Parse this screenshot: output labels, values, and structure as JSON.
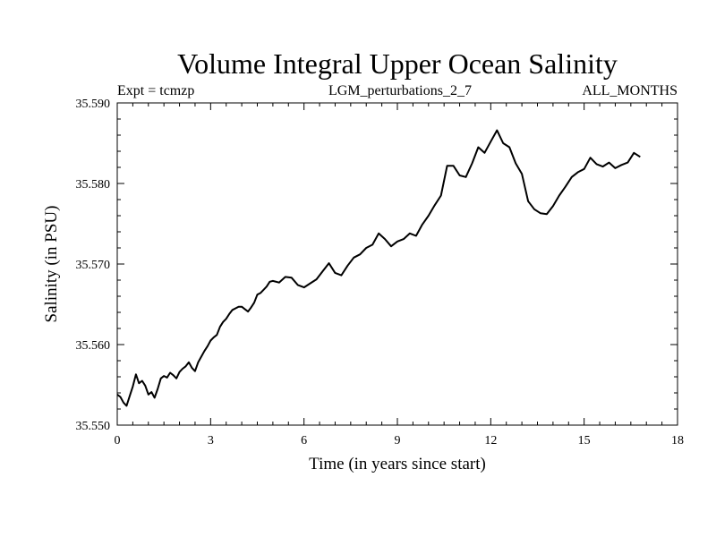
{
  "chart_data": {
    "type": "line",
    "title": "Volume Integral Upper Ocean Salinity",
    "subtitle_left": "Expt = tcmzp",
    "subtitle_center": "LGM_perturbations_2_7",
    "subtitle_right": "ALL_MONTHS",
    "xlabel": "Time (in years since start)",
    "ylabel": "Salinity (in PSU)",
    "xlim": [
      0,
      18
    ],
    "ylim": [
      35.55,
      35.59
    ],
    "xticks": [
      0,
      3,
      6,
      9,
      12,
      15,
      18
    ],
    "xtick_labels": [
      "0",
      "3",
      "6",
      "9",
      "12",
      "15",
      "18"
    ],
    "yticks": [
      35.55,
      35.56,
      35.57,
      35.58,
      35.59
    ],
    "ytick_labels": [
      "35.550",
      "35.560",
      "35.570",
      "35.580",
      "35.590"
    ],
    "grid": false,
    "series": [
      {
        "name": "salinity",
        "x": [
          0.0,
          0.1,
          0.2,
          0.3,
          0.4,
          0.5,
          0.6,
          0.7,
          0.8,
          0.9,
          1.0,
          1.1,
          1.2,
          1.3,
          1.4,
          1.5,
          1.6,
          1.7,
          1.8,
          1.9,
          2.0,
          2.1,
          2.2,
          2.3,
          2.4,
          2.5,
          2.6,
          2.7,
          2.8,
          2.9,
          3.0,
          3.1,
          3.2,
          3.3,
          3.4,
          3.5,
          3.6,
          3.7,
          3.8,
          3.9,
          4.0,
          4.1,
          4.2,
          4.3,
          4.4,
          4.5,
          4.6,
          4.7,
          4.8,
          4.9,
          5.0,
          5.2,
          5.4,
          5.6,
          5.8,
          6.0,
          6.2,
          6.4,
          6.6,
          6.8,
          7.0,
          7.2,
          7.4,
          7.6,
          7.8,
          8.0,
          8.2,
          8.4,
          8.6,
          8.8,
          9.0,
          9.2,
          9.4,
          9.6,
          9.8,
          10.0,
          10.2,
          10.4,
          10.6,
          10.8,
          11.0,
          11.2,
          11.4,
          11.6,
          11.8,
          12.0,
          12.2,
          12.4,
          12.6,
          12.8,
          13.0,
          13.2,
          13.4,
          13.6,
          13.8,
          14.0,
          14.2,
          14.4,
          14.6,
          14.8,
          15.0,
          15.2,
          15.4,
          15.6,
          15.8,
          16.0,
          16.2,
          16.4,
          16.6,
          16.8
        ],
        "values": [
          35.5538,
          35.5535,
          35.5528,
          35.5524,
          35.5536,
          35.5548,
          35.5563,
          35.5552,
          35.5555,
          35.5549,
          35.5538,
          35.5541,
          35.5534,
          35.5545,
          35.5558,
          35.5561,
          35.5559,
          35.5565,
          35.5562,
          35.5558,
          35.5566,
          35.557,
          35.5573,
          35.5578,
          35.5571,
          35.5567,
          35.5578,
          35.5585,
          35.5592,
          35.5598,
          35.5605,
          35.5609,
          35.5612,
          35.5622,
          35.5628,
          35.5632,
          35.5638,
          35.5643,
          35.5645,
          35.5647,
          35.5647,
          35.5644,
          35.5641,
          35.5646,
          35.5652,
          35.5662,
          35.5664,
          35.5668,
          35.5672,
          35.5678,
          35.5679,
          35.5677,
          35.5684,
          35.5683,
          35.5674,
          35.5671,
          35.5676,
          35.5681,
          35.5691,
          35.5701,
          35.5689,
          35.5686,
          35.5698,
          35.5708,
          35.5712,
          35.572,
          35.5724,
          35.5738,
          35.5731,
          35.5722,
          35.5728,
          35.5731,
          35.5738,
          35.5735,
          35.5749,
          35.576,
          35.5773,
          35.5785,
          35.5822,
          35.5822,
          35.581,
          35.5808,
          35.5825,
          35.5845,
          35.5838,
          35.5852,
          35.5866,
          35.585,
          35.5845,
          35.5825,
          35.5812,
          35.5778,
          35.5768,
          35.5763,
          35.5762,
          35.5772,
          35.5785,
          35.5796,
          35.5808,
          35.5814,
          35.5818,
          35.5832,
          35.5824,
          35.5821,
          35.5826,
          35.5819,
          35.5823,
          35.5826,
          35.5838,
          35.5833
        ]
      }
    ]
  }
}
